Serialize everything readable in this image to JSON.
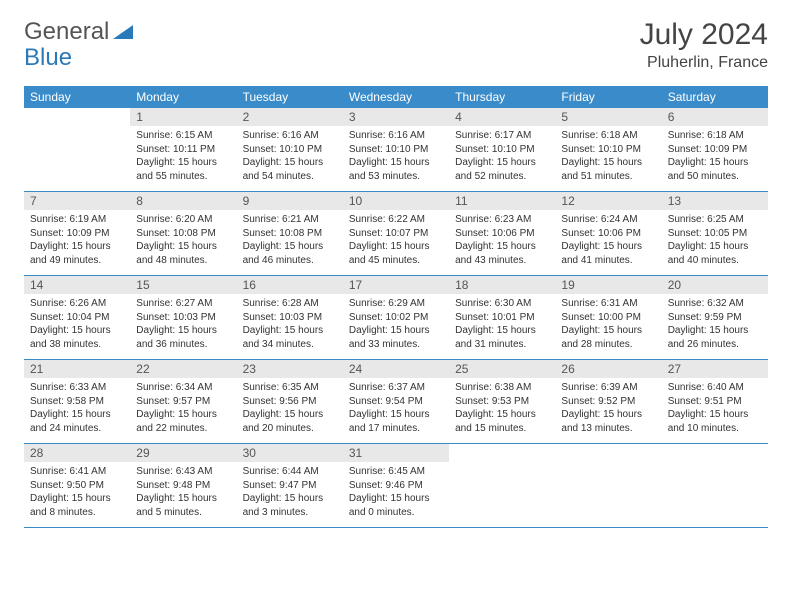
{
  "logo": {
    "part1": "General",
    "part2": "Blue"
  },
  "header": {
    "month": "July 2024",
    "location": "Pluherlin, France"
  },
  "colors": {
    "header_bg": "#3a8bc9",
    "header_text": "#ffffff",
    "daynum_bg": "#e8e8e8",
    "row_border": "#3a8bc9",
    "logo_blue": "#2a7ab9"
  },
  "day_headers": [
    "Sunday",
    "Monday",
    "Tuesday",
    "Wednesday",
    "Thursday",
    "Friday",
    "Saturday"
  ],
  "weeks": [
    [
      {
        "n": "",
        "sunrise": "",
        "sunset": "",
        "daylight": ""
      },
      {
        "n": "1",
        "sunrise": "Sunrise: 6:15 AM",
        "sunset": "Sunset: 10:11 PM",
        "daylight": "Daylight: 15 hours and 55 minutes."
      },
      {
        "n": "2",
        "sunrise": "Sunrise: 6:16 AM",
        "sunset": "Sunset: 10:10 PM",
        "daylight": "Daylight: 15 hours and 54 minutes."
      },
      {
        "n": "3",
        "sunrise": "Sunrise: 6:16 AM",
        "sunset": "Sunset: 10:10 PM",
        "daylight": "Daylight: 15 hours and 53 minutes."
      },
      {
        "n": "4",
        "sunrise": "Sunrise: 6:17 AM",
        "sunset": "Sunset: 10:10 PM",
        "daylight": "Daylight: 15 hours and 52 minutes."
      },
      {
        "n": "5",
        "sunrise": "Sunrise: 6:18 AM",
        "sunset": "Sunset: 10:10 PM",
        "daylight": "Daylight: 15 hours and 51 minutes."
      },
      {
        "n": "6",
        "sunrise": "Sunrise: 6:18 AM",
        "sunset": "Sunset: 10:09 PM",
        "daylight": "Daylight: 15 hours and 50 minutes."
      }
    ],
    [
      {
        "n": "7",
        "sunrise": "Sunrise: 6:19 AM",
        "sunset": "Sunset: 10:09 PM",
        "daylight": "Daylight: 15 hours and 49 minutes."
      },
      {
        "n": "8",
        "sunrise": "Sunrise: 6:20 AM",
        "sunset": "Sunset: 10:08 PM",
        "daylight": "Daylight: 15 hours and 48 minutes."
      },
      {
        "n": "9",
        "sunrise": "Sunrise: 6:21 AM",
        "sunset": "Sunset: 10:08 PM",
        "daylight": "Daylight: 15 hours and 46 minutes."
      },
      {
        "n": "10",
        "sunrise": "Sunrise: 6:22 AM",
        "sunset": "Sunset: 10:07 PM",
        "daylight": "Daylight: 15 hours and 45 minutes."
      },
      {
        "n": "11",
        "sunrise": "Sunrise: 6:23 AM",
        "sunset": "Sunset: 10:06 PM",
        "daylight": "Daylight: 15 hours and 43 minutes."
      },
      {
        "n": "12",
        "sunrise": "Sunrise: 6:24 AM",
        "sunset": "Sunset: 10:06 PM",
        "daylight": "Daylight: 15 hours and 41 minutes."
      },
      {
        "n": "13",
        "sunrise": "Sunrise: 6:25 AM",
        "sunset": "Sunset: 10:05 PM",
        "daylight": "Daylight: 15 hours and 40 minutes."
      }
    ],
    [
      {
        "n": "14",
        "sunrise": "Sunrise: 6:26 AM",
        "sunset": "Sunset: 10:04 PM",
        "daylight": "Daylight: 15 hours and 38 minutes."
      },
      {
        "n": "15",
        "sunrise": "Sunrise: 6:27 AM",
        "sunset": "Sunset: 10:03 PM",
        "daylight": "Daylight: 15 hours and 36 minutes."
      },
      {
        "n": "16",
        "sunrise": "Sunrise: 6:28 AM",
        "sunset": "Sunset: 10:03 PM",
        "daylight": "Daylight: 15 hours and 34 minutes."
      },
      {
        "n": "17",
        "sunrise": "Sunrise: 6:29 AM",
        "sunset": "Sunset: 10:02 PM",
        "daylight": "Daylight: 15 hours and 33 minutes."
      },
      {
        "n": "18",
        "sunrise": "Sunrise: 6:30 AM",
        "sunset": "Sunset: 10:01 PM",
        "daylight": "Daylight: 15 hours and 31 minutes."
      },
      {
        "n": "19",
        "sunrise": "Sunrise: 6:31 AM",
        "sunset": "Sunset: 10:00 PM",
        "daylight": "Daylight: 15 hours and 28 minutes."
      },
      {
        "n": "20",
        "sunrise": "Sunrise: 6:32 AM",
        "sunset": "Sunset: 9:59 PM",
        "daylight": "Daylight: 15 hours and 26 minutes."
      }
    ],
    [
      {
        "n": "21",
        "sunrise": "Sunrise: 6:33 AM",
        "sunset": "Sunset: 9:58 PM",
        "daylight": "Daylight: 15 hours and 24 minutes."
      },
      {
        "n": "22",
        "sunrise": "Sunrise: 6:34 AM",
        "sunset": "Sunset: 9:57 PM",
        "daylight": "Daylight: 15 hours and 22 minutes."
      },
      {
        "n": "23",
        "sunrise": "Sunrise: 6:35 AM",
        "sunset": "Sunset: 9:56 PM",
        "daylight": "Daylight: 15 hours and 20 minutes."
      },
      {
        "n": "24",
        "sunrise": "Sunrise: 6:37 AM",
        "sunset": "Sunset: 9:54 PM",
        "daylight": "Daylight: 15 hours and 17 minutes."
      },
      {
        "n": "25",
        "sunrise": "Sunrise: 6:38 AM",
        "sunset": "Sunset: 9:53 PM",
        "daylight": "Daylight: 15 hours and 15 minutes."
      },
      {
        "n": "26",
        "sunrise": "Sunrise: 6:39 AM",
        "sunset": "Sunset: 9:52 PM",
        "daylight": "Daylight: 15 hours and 13 minutes."
      },
      {
        "n": "27",
        "sunrise": "Sunrise: 6:40 AM",
        "sunset": "Sunset: 9:51 PM",
        "daylight": "Daylight: 15 hours and 10 minutes."
      }
    ],
    [
      {
        "n": "28",
        "sunrise": "Sunrise: 6:41 AM",
        "sunset": "Sunset: 9:50 PM",
        "daylight": "Daylight: 15 hours and 8 minutes."
      },
      {
        "n": "29",
        "sunrise": "Sunrise: 6:43 AM",
        "sunset": "Sunset: 9:48 PM",
        "daylight": "Daylight: 15 hours and 5 minutes."
      },
      {
        "n": "30",
        "sunrise": "Sunrise: 6:44 AM",
        "sunset": "Sunset: 9:47 PM",
        "daylight": "Daylight: 15 hours and 3 minutes."
      },
      {
        "n": "31",
        "sunrise": "Sunrise: 6:45 AM",
        "sunset": "Sunset: 9:46 PM",
        "daylight": "Daylight: 15 hours and 0 minutes."
      },
      {
        "n": "",
        "sunrise": "",
        "sunset": "",
        "daylight": ""
      },
      {
        "n": "",
        "sunrise": "",
        "sunset": "",
        "daylight": ""
      },
      {
        "n": "",
        "sunrise": "",
        "sunset": "",
        "daylight": ""
      }
    ]
  ]
}
